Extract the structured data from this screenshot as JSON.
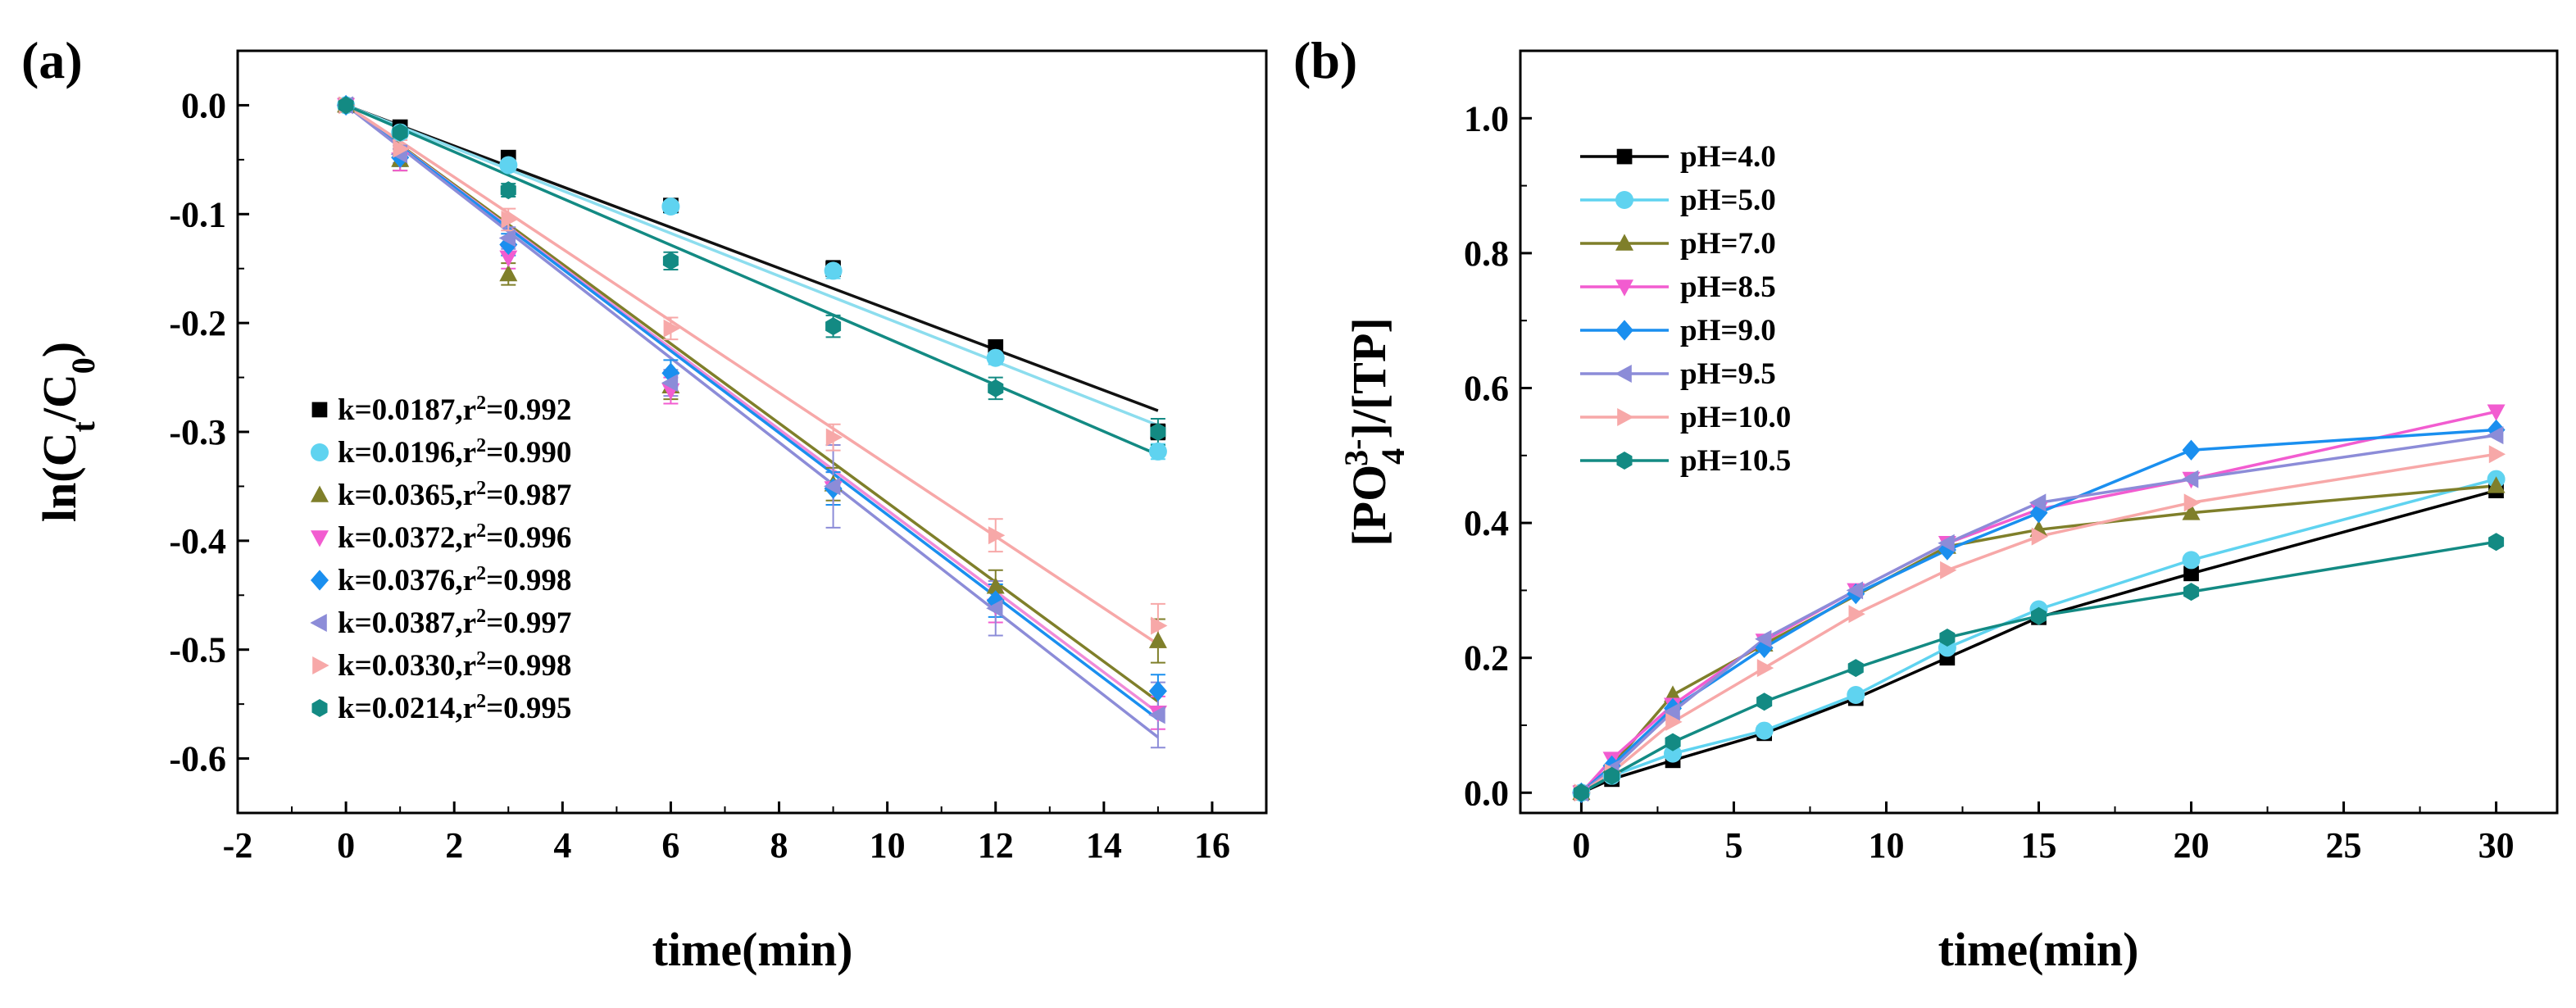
{
  "chart_data": [
    {
      "type": "scatter",
      "panel_label": "(a)",
      "xlabel": "time(min)",
      "ylabel": {
        "prefix": "ln(C",
        "sub1": "t",
        "mid": "/C",
        "sub2": "0",
        "suffix": ")"
      },
      "xlim": [
        -2,
        17
      ],
      "ylim": [
        -0.65,
        0.05
      ],
      "xticks": [
        -2,
        0,
        2,
        4,
        6,
        8,
        10,
        12,
        14,
        16
      ],
      "yticks": [
        0.0,
        -0.1,
        -0.2,
        -0.3,
        -0.4,
        -0.5,
        -0.6
      ],
      "ytick_labels": [
        "0.0",
        "-0.1",
        "-0.2",
        "-0.3",
        "-0.4",
        "-0.5",
        "-0.6"
      ],
      "legend_position": "lower-left",
      "x": [
        0,
        1,
        3,
        6,
        9,
        12,
        15
      ],
      "series": [
        {
          "name": "pH=4.0",
          "k": 0.0187,
          "label_k": "k=0.0187,r",
          "label_r": "=0.992",
          "color": "#000000",
          "line_color": "#111111",
          "marker": "square",
          "values": [
            0,
            -0.02,
            -0.048,
            -0.092,
            -0.15,
            -0.222,
            -0.3
          ],
          "err": [
            0,
            0.004,
            0.004,
            0.006,
            0.007,
            0.006,
            0.007
          ]
        },
        {
          "name": "pH=5.0",
          "k": 0.0196,
          "label_k": "k=0.0196,r",
          "label_r": "=0.990",
          "color": "#5FD3F0",
          "line_color": "#8CDDEE",
          "marker": "circle",
          "values": [
            0,
            -0.025,
            -0.055,
            -0.093,
            -0.152,
            -0.232,
            -0.318
          ],
          "err": [
            0,
            0.004,
            0.005,
            0.006,
            0.007,
            0.006,
            0.007
          ]
        },
        {
          "name": "pH=7.0",
          "k": 0.0365,
          "label_k": "k=0.0365,r",
          "label_r": "=0.987",
          "color": "#7F7F2A",
          "line_color": "#7F7F2A",
          "marker": "triangle",
          "values": [
            0,
            -0.05,
            -0.155,
            -0.258,
            -0.348,
            -0.442,
            -0.492
          ],
          "err": [
            0,
            0.01,
            0.01,
            0.012,
            0.015,
            0.015,
            0.02
          ]
        },
        {
          "name": "pH=8.5",
          "k": 0.0372,
          "label_k": "k=0.0372,r",
          "label_r": "=0.996",
          "color": "#F25CD0",
          "line_color": "#F08BD8",
          "marker": "tri-down",
          "values": [
            0,
            -0.05,
            -0.14,
            -0.262,
            -0.352,
            -0.46,
            -0.558
          ],
          "err": [
            0,
            0.01,
            0.01,
            0.012,
            0.015,
            0.015,
            0.015
          ]
        },
        {
          "name": "pH=9.0",
          "k": 0.0376,
          "label_k": "k=0.0376,r",
          "label_r": "=0.998",
          "color": "#1A8FEF",
          "line_color": "#1A8FEF",
          "marker": "diamond",
          "values": [
            0,
            -0.048,
            -0.128,
            -0.246,
            -0.352,
            -0.455,
            -0.538
          ],
          "err": [
            0,
            0.008,
            0.01,
            0.012,
            0.015,
            0.015,
            0.015
          ]
        },
        {
          "name": "pH=9.5",
          "k": 0.0387,
          "label_k": "k=0.0387,r",
          "label_r": "=0.997",
          "color": "#8C8CD8",
          "line_color": "#8C8CD8",
          "marker": "tri-left",
          "values": [
            0,
            -0.045,
            -0.122,
            -0.255,
            -0.35,
            -0.462,
            -0.56
          ],
          "err": [
            0,
            0.008,
            0.01,
            0.012,
            0.038,
            0.025,
            0.03
          ]
        },
        {
          "name": "pH=10.0",
          "k": 0.033,
          "label_k": "k=0.0330,r",
          "label_r": "=0.998",
          "color": "#F7A8A8",
          "line_color": "#F7A8A8",
          "marker": "tri-right",
          "values": [
            0,
            -0.04,
            -0.105,
            -0.205,
            -0.305,
            -0.395,
            -0.478
          ],
          "err": [
            0,
            0.008,
            0.01,
            0.01,
            0.012,
            0.015,
            0.02
          ]
        },
        {
          "name": "pH=10.5",
          "k": 0.0214,
          "label_k": " k=0.0214,r",
          "label_r": "=0.995",
          "color": "#138A83",
          "line_color": "#138A83",
          "marker": "hexagon",
          "values": [
            0,
            -0.025,
            -0.078,
            -0.143,
            -0.203,
            -0.26,
            -0.3
          ],
          "err": [
            0,
            0.005,
            0.006,
            0.008,
            0.01,
            0.01,
            0.012
          ]
        }
      ]
    },
    {
      "type": "line",
      "panel_label": "(b)",
      "xlabel": "time(min)",
      "ylabel": {
        "prefix": "[PO",
        "sub": "4",
        "sup": "3-",
        "suffix": "]/[TP]"
      },
      "xlim": [
        -2,
        32
      ],
      "ylim": [
        -0.03,
        1.1
      ],
      "xticks": [
        0,
        5,
        10,
        15,
        20,
        25,
        30
      ],
      "yticks": [
        0.0,
        0.2,
        0.4,
        0.6,
        0.8,
        1.0
      ],
      "ytick_labels": [
        "0.0",
        "0.2",
        "0.4",
        "0.6",
        "0.8",
        "1.0"
      ],
      "legend_position": "top-left",
      "series": [
        {
          "name": "pH=4.0",
          "color": "#000000",
          "marker": "square",
          "x": [
            0,
            1,
            3,
            6,
            9,
            12,
            15,
            20,
            30
          ],
          "values": [
            0,
            0.02,
            0.048,
            0.088,
            0.14,
            0.2,
            0.26,
            0.325,
            0.448
          ]
        },
        {
          "name": "pH=5.0",
          "color": "#5FD3F0",
          "marker": "circle",
          "x": [
            0,
            1,
            3,
            6,
            9,
            12,
            15,
            20,
            30
          ],
          "values": [
            0,
            0.025,
            0.058,
            0.092,
            0.145,
            0.215,
            0.272,
            0.345,
            0.465
          ]
        },
        {
          "name": "pH=7.0",
          "color": "#7F7F2A",
          "marker": "triangle",
          "x": [
            0,
            1,
            3,
            6,
            12,
            15,
            20,
            30
          ],
          "values": [
            0,
            0.04,
            0.145,
            0.22,
            0.365,
            0.39,
            0.415,
            0.455
          ]
        },
        {
          "name": "pH=8.5",
          "color": "#F25CD0",
          "marker": "tri-down",
          "x": [
            0,
            1,
            3,
            6,
            9,
            12,
            15,
            20,
            30
          ],
          "values": [
            0,
            0.05,
            0.13,
            0.225,
            0.3,
            0.37,
            0.42,
            0.465,
            0.565
          ]
        },
        {
          "name": "pH=9.0",
          "color": "#1A8FEF",
          "marker": "diamond",
          "x": [
            0,
            1,
            3,
            6,
            9,
            12,
            15,
            20,
            30
          ],
          "values": [
            0,
            0.04,
            0.125,
            0.215,
            0.295,
            0.36,
            0.415,
            0.508,
            0.538
          ]
        },
        {
          "name": "pH=9.5",
          "color": "#8C8CD8",
          "marker": "tri-left",
          "x": [
            0,
            1,
            3,
            6,
            9,
            12,
            15,
            20,
            30
          ],
          "values": [
            0,
            0.035,
            0.12,
            0.228,
            0.3,
            0.37,
            0.43,
            0.465,
            0.53
          ]
        },
        {
          "name": "pH=10.0",
          "color": "#F7A8A8",
          "marker": "tri-right",
          "x": [
            0,
            1,
            3,
            6,
            9,
            12,
            15,
            20,
            30
          ],
          "values": [
            0,
            0.03,
            0.105,
            0.185,
            0.265,
            0.33,
            0.38,
            0.43,
            0.502
          ]
        },
        {
          "name": "pH=10.5",
          "color": "#138A83",
          "marker": "hexagon",
          "x": [
            0,
            1,
            3,
            6,
            9,
            12,
            15,
            20,
            30
          ],
          "values": [
            0,
            0.025,
            0.075,
            0.135,
            0.185,
            0.23,
            0.262,
            0.298,
            0.372
          ]
        }
      ]
    }
  ]
}
